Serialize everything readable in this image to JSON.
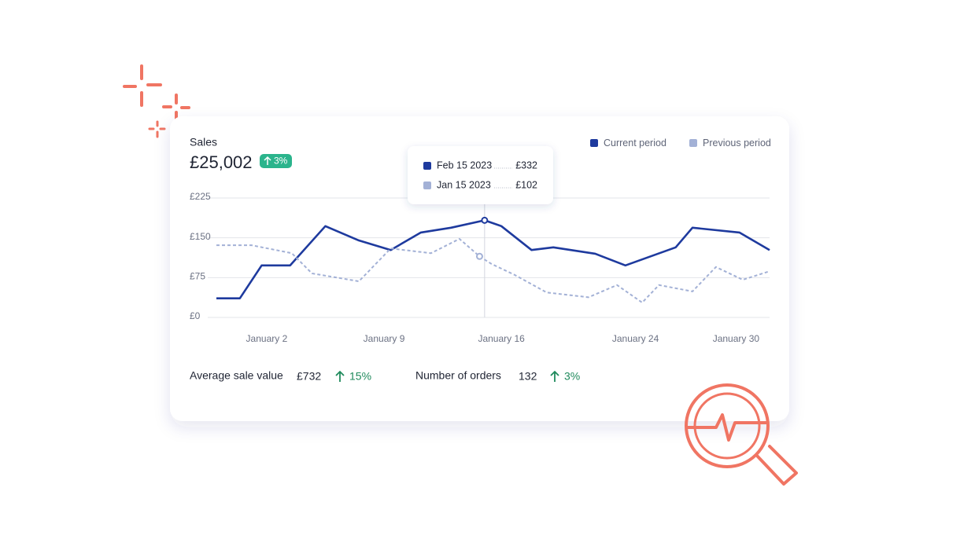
{
  "card": {
    "title": "Sales",
    "total": "£25,002",
    "change": "3%"
  },
  "chart_data": {
    "type": "line",
    "legend": "top-right",
    "grid": true,
    "xlim": [
      -1,
      32
    ],
    "xticks": [
      {
        "value": 2,
        "label": "January 2"
      },
      {
        "value": 9,
        "label": "January 9"
      },
      {
        "value": 16,
        "label": "January 16"
      },
      {
        "value": 24,
        "label": "January 24"
      },
      {
        "value": 30,
        "label": "January 30"
      }
    ],
    "ylim": [
      0,
      225
    ],
    "yticks": [
      {
        "value": 0,
        "label": "£0"
      },
      {
        "value": 75,
        "label": "£75"
      },
      {
        "value": 150,
        "label": "£150"
      },
      {
        "value": 225,
        "label": "£225"
      }
    ],
    "highlight": {
      "x": 15
    },
    "series": [
      {
        "name": "Current period",
        "color": "#1e3a9e",
        "dashed": false,
        "x": [
          -1,
          0.4,
          1.7,
          3.4,
          5.5,
          7.5,
          9.4,
          11.2,
          13,
          15,
          16,
          17.8,
          19.1,
          21.6,
          23.4,
          26.4,
          27.4,
          30.2,
          32
        ],
        "values": [
          36,
          36,
          98,
          98,
          172,
          145,
          127,
          160,
          169,
          183,
          172,
          127,
          132,
          120,
          98,
          132,
          169,
          160,
          127
        ]
      },
      {
        "name": "Previous period",
        "color": "#a3b1d6",
        "dashed": true,
        "x": [
          -1,
          1.1,
          3.5,
          4.7,
          7.5,
          9.4,
          11.8,
          13.5,
          14.7,
          15.4,
          16.8,
          18.7,
          21.2,
          22.9,
          24.4,
          25.4,
          27.4,
          28.8,
          30.4,
          32
        ],
        "values": [
          136,
          136,
          121,
          83,
          68,
          130,
          121,
          148,
          115,
          101,
          80,
          47,
          38,
          61,
          28,
          61,
          49,
          95,
          71,
          87
        ]
      }
    ]
  },
  "tooltip": {
    "rows": [
      {
        "date": "Feb 15 2023",
        "value": "£332"
      },
      {
        "date": "Jan 15 2023",
        "value": "£102"
      }
    ]
  },
  "metrics": [
    {
      "label": "Average sale value",
      "value": "£732",
      "change": "15%"
    },
    {
      "label": "Number of orders",
      "value": "132",
      "change": "3%"
    }
  ]
}
